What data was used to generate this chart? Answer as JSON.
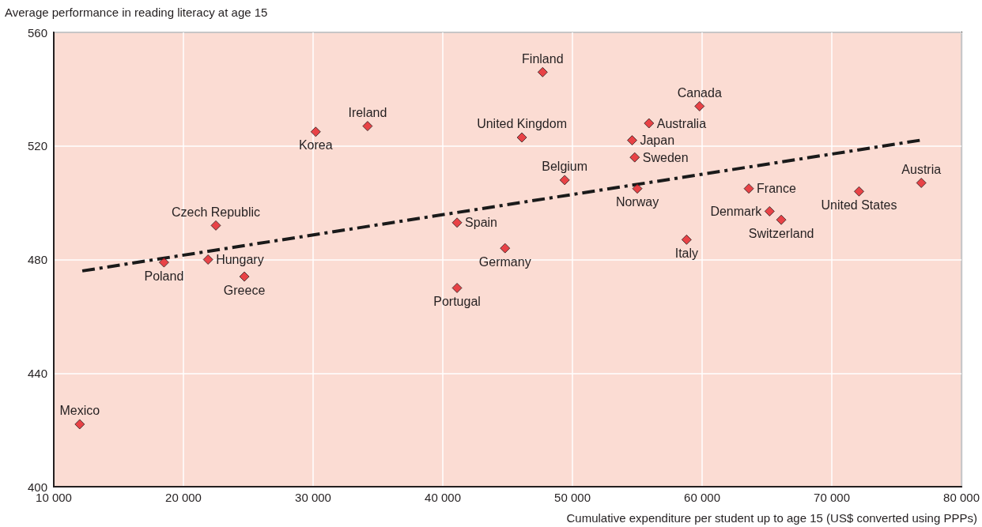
{
  "chart_data": {
    "type": "scatter",
    "xlabel": "Cumulative expenditure per student up to age 15 (US$ converted using PPPs)",
    "ylabel": "Average performance in reading literacy at age 15",
    "xlim": [
      10000,
      80000
    ],
    "xticks": [
      {
        "value": 10000,
        "label": "10 000"
      },
      {
        "value": 20000,
        "label": "20 000"
      },
      {
        "value": 30000,
        "label": "30 000"
      },
      {
        "value": 40000,
        "label": "40 000"
      },
      {
        "value": 50000,
        "label": "50 000"
      },
      {
        "value": 60000,
        "label": "60 000"
      },
      {
        "value": 70000,
        "label": "70 000"
      },
      {
        "value": 80000,
        "label": "80 000"
      }
    ],
    "ylim": [
      400,
      560
    ],
    "yticks": [
      400,
      440,
      480,
      520,
      560
    ],
    "grid": true,
    "marker": "diamond",
    "series": [
      {
        "color": "#e31b23",
        "x": [
          12000,
          18500,
          22500,
          21900,
          24700,
          30200,
          34200,
          47700,
          46100,
          49400,
          41100,
          44800,
          41100,
          59800,
          55900,
          54600,
          54800,
          55000,
          63600,
          65200,
          66100,
          58800,
          72100,
          76900
        ],
        "values": [
          422,
          479,
          492,
          480,
          474,
          525,
          527,
          546,
          523,
          508,
          493,
          484,
          470,
          534,
          528,
          522,
          516,
          505,
          505,
          497,
          494,
          487,
          504,
          507
        ]
      },
      {
        "type": "line",
        "color": "#1a1a1a",
        "line_style": "dashed",
        "marker": "none",
        "x": [
          12200,
          76800
        ],
        "values": [
          476,
          522
        ]
      }
    ],
    "annotations": [
      {
        "text": "Mexico",
        "x": 12000,
        "y": 422
      },
      {
        "text": "Poland",
        "x": 18500,
        "y": 479
      },
      {
        "text": "Czech Republic",
        "x": 22500,
        "y": 492
      },
      {
        "text": "Hungary",
        "x": 21900,
        "y": 480
      },
      {
        "text": "Greece",
        "x": 24700,
        "y": 474
      },
      {
        "text": "Korea",
        "x": 30200,
        "y": 525
      },
      {
        "text": "Ireland",
        "x": 34200,
        "y": 527
      },
      {
        "text": "Finland",
        "x": 47700,
        "y": 546
      },
      {
        "text": "United Kingdom",
        "x": 46100,
        "y": 523
      },
      {
        "text": "Belgium",
        "x": 49400,
        "y": 508
      },
      {
        "text": "Spain",
        "x": 41100,
        "y": 493
      },
      {
        "text": "Germany",
        "x": 44800,
        "y": 484
      },
      {
        "text": "Portugal",
        "x": 41100,
        "y": 470
      },
      {
        "text": "Canada",
        "x": 59800,
        "y": 534
      },
      {
        "text": "Australia",
        "x": 55900,
        "y": 528
      },
      {
        "text": "Japan",
        "x": 54600,
        "y": 522
      },
      {
        "text": "Sweden",
        "x": 54800,
        "y": 516
      },
      {
        "text": "Norway",
        "x": 55000,
        "y": 505
      },
      {
        "text": "France",
        "x": 63600,
        "y": 505
      },
      {
        "text": "Denmark",
        "x": 65200,
        "y": 497
      },
      {
        "text": "Switzerland",
        "x": 66100,
        "y": 494
      },
      {
        "text": "Italy",
        "x": 58800,
        "y": 487
      },
      {
        "text": "United States",
        "x": 72100,
        "y": 504
      },
      {
        "text": "Austria",
        "x": 76900,
        "y": 507
      }
    ]
  }
}
